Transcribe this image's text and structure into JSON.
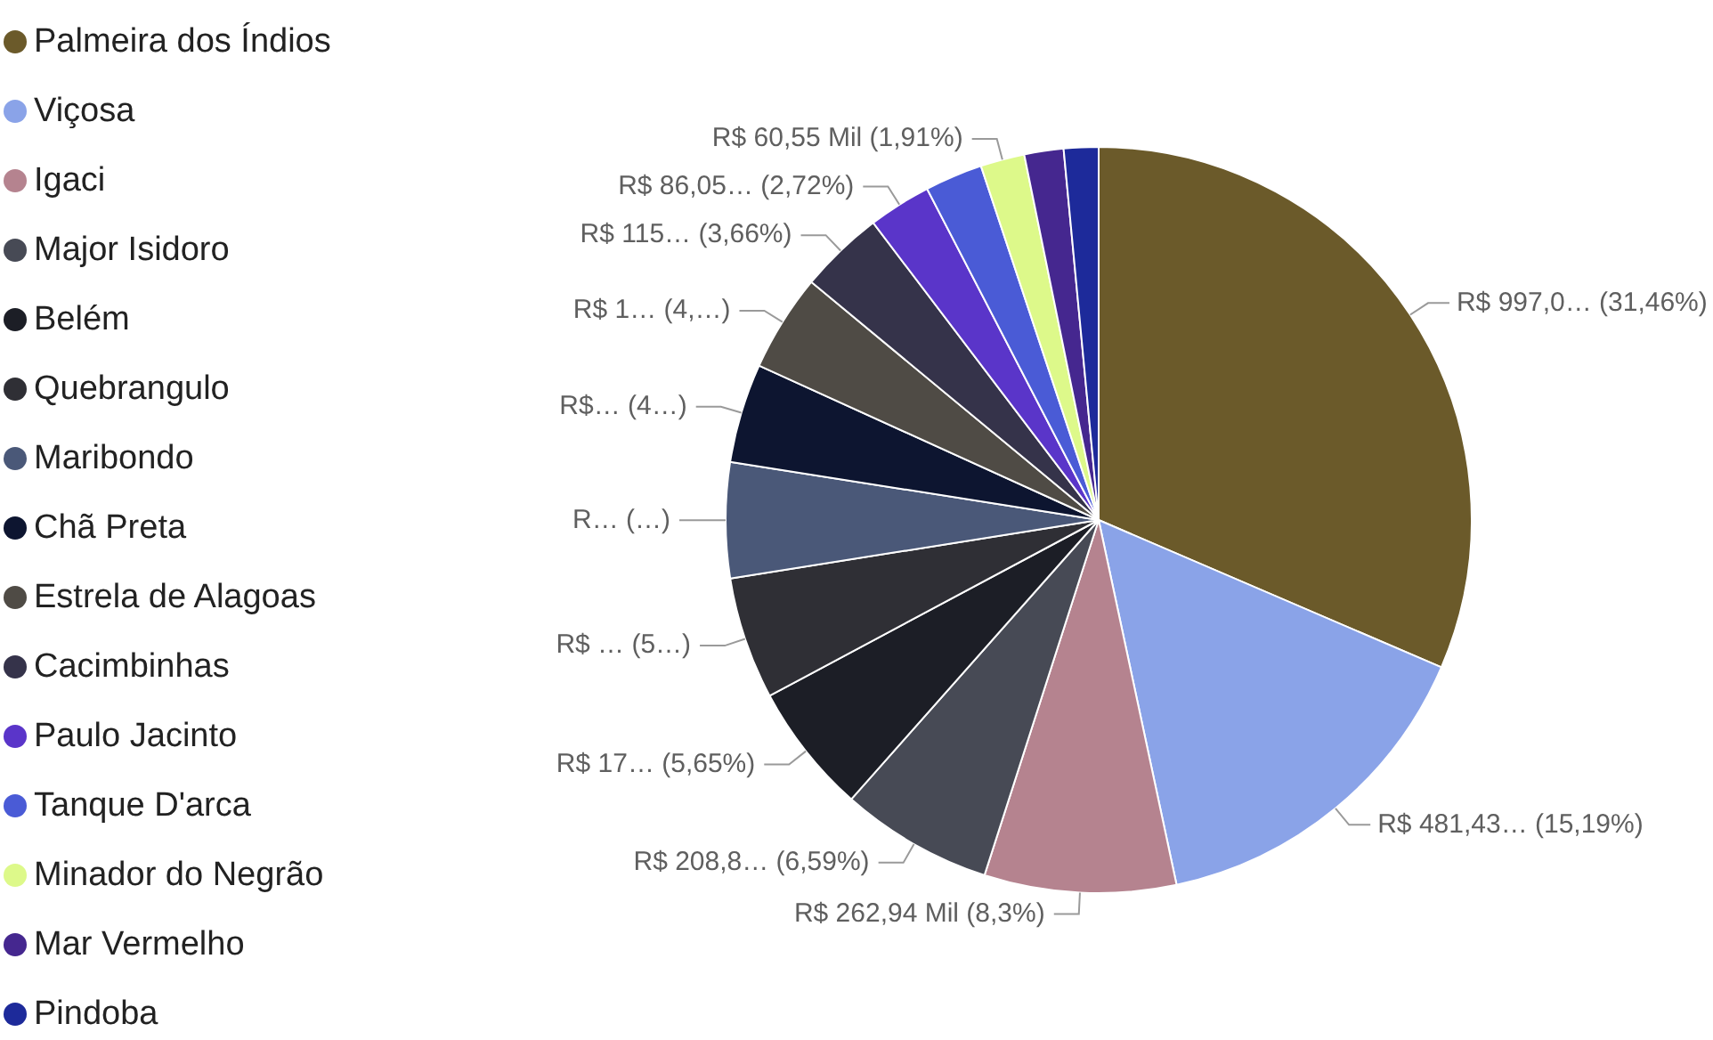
{
  "chart_data": {
    "type": "pie",
    "legend": "left",
    "categories": [
      "Palmeira dos Índios",
      "Viçosa",
      "Igaci",
      "Major Isidoro",
      "Belém",
      "Quebrangulo",
      "Maribondo",
      "Chã Preta",
      "Estrela de Alagoas",
      "Cacimbinhas",
      "Paulo Jacinto",
      "Tanque D'arca",
      "Minador do Negrão",
      "Mar Vermelho",
      "Pindoba"
    ],
    "values": [
      31.46,
      15.19,
      8.3,
      6.59,
      5.65,
      5.3,
      5.0,
      4.3,
      4.22,
      3.66,
      2.72,
      2.5,
      1.91,
      1.7,
      1.5
    ],
    "value_labels": [
      "R$ 997,0… (31,46%)",
      "R$ 481,43… (15,19%)",
      "R$ 262,94 Mil (8,3%)",
      "R$ 208,8… (6,59%)",
      "R$ 17… (5,65%)",
      "R$ … (5…)",
      "R… (…)",
      "R$… (4…)",
      "R$ 1… (4,…)",
      "R$ 115… (3,66%)",
      "R$ 86,05… (2,72%)",
      null,
      "R$ 60,55 Mil (1,91%)",
      null,
      null
    ],
    "colors": [
      "#6b5a2a",
      "#8aa3e8",
      "#b5838f",
      "#474a55",
      "#1c1e26",
      "#2f2f35",
      "#4a5878",
      "#0d1530",
      "#4f4b45",
      "#35334a",
      "#5a35c9",
      "#4a5bd6",
      "#ddf98a",
      "#45278f",
      "#1d2a9a"
    ]
  }
}
